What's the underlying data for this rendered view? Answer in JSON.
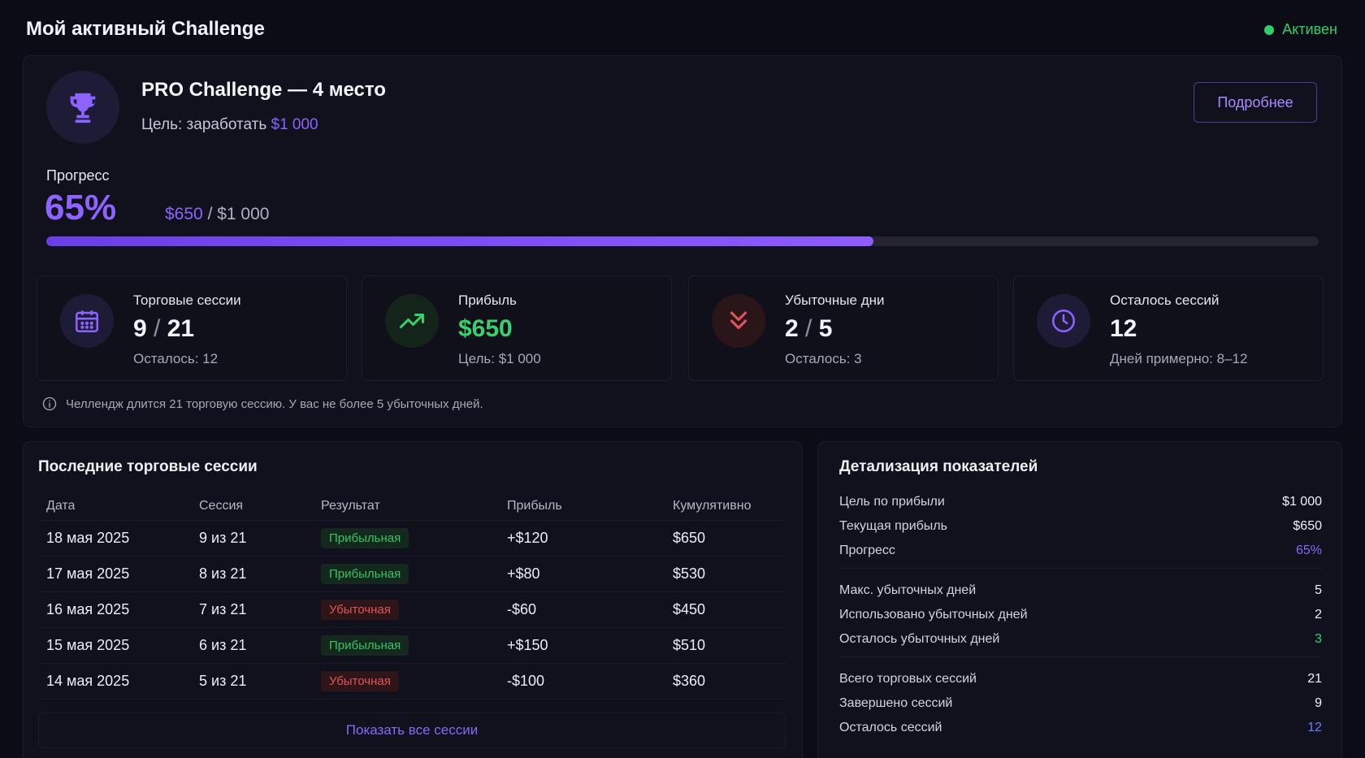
{
  "header": {
    "title": "Мой активный Challenge",
    "status": "Активен"
  },
  "challenge": {
    "title": "PRO Challenge — 4 место",
    "goal_prefix": "Цель: заработать",
    "goal_amount": "$1 000",
    "details_button": "Подробнее",
    "progress_label": "Прогресс",
    "progress_percent": "65%",
    "progress_value": 0.65,
    "progress_current": "$650",
    "progress_total": "/ $1 000"
  },
  "stats": [
    {
      "icon": "calendar-icon",
      "title": "Торговые сессии",
      "value_a": "9",
      "sep": "/",
      "value_b": "21",
      "sub": "Осталось: 12"
    },
    {
      "icon": "trending-up-icon",
      "title": "Прибыль",
      "value": "$650",
      "sub": "Цель: $1 000"
    },
    {
      "icon": "chevrons-down-icon",
      "title": "Убыточные дни",
      "value_a": "2",
      "sep": "/",
      "value_b": "5",
      "sub": "Осталось: 3"
    },
    {
      "icon": "clock-icon",
      "title": "Осталось сессий",
      "value": "12",
      "sub": "Дней примерно: 8–12"
    }
  ],
  "info": "Челлендж длится 21 торговую сессию. У вас не более 5 убыточных дней.",
  "sessions": {
    "title": "Последние торговые сессии",
    "columns": [
      "Дата",
      "Сессия",
      "Результат",
      "Прибыль",
      "Кумулятивно"
    ],
    "rows": [
      {
        "date": "18 мая 2025",
        "session": "9 из 21",
        "result": "Прибыльная",
        "profit": "+$120",
        "cumulative": "$650"
      },
      {
        "date": "17 мая 2025",
        "session": "8 из 21",
        "result": "Прибыльная",
        "profit": "+$80",
        "cumulative": "$530"
      },
      {
        "date": "16 мая 2025",
        "session": "7 из 21",
        "result": "Убыточная",
        "profit": "-$60",
        "cumulative": "$450"
      },
      {
        "date": "15 мая 2025",
        "session": "6 из 21",
        "result": "Прибыльная",
        "profit": "+$150",
        "cumulative": "$510"
      },
      {
        "date": "14 мая 2025",
        "session": "5 из 21",
        "result": "Убыточная",
        "profit": "-$100",
        "cumulative": "$360"
      }
    ],
    "show_all": "Показать все сессии"
  },
  "details": {
    "title": "Детализация показателей",
    "groups": [
      [
        {
          "label": "Цель по прибыли",
          "value": "$1 000"
        },
        {
          "label": "Текущая прибыль",
          "value": "$650"
        },
        {
          "label": "Прогресс",
          "value": "65%"
        }
      ],
      [
        {
          "label": "Макс. убыточных дней",
          "value": "5"
        },
        {
          "label": "Использовано убыточных дней",
          "value": "2"
        },
        {
          "label": "Осталось убыточных дней",
          "value": "3"
        }
      ],
      [
        {
          "label": "Всего торговых сессий",
          "value": "21"
        },
        {
          "label": "Завершено сессий",
          "value": "9"
        },
        {
          "label": "Осталось сессий",
          "value": "12"
        }
      ]
    ]
  },
  "colors": {
    "accent": "#8d64ff",
    "success": "#37d26b",
    "danger": "#e2545c",
    "background": "#0b0c15"
  }
}
